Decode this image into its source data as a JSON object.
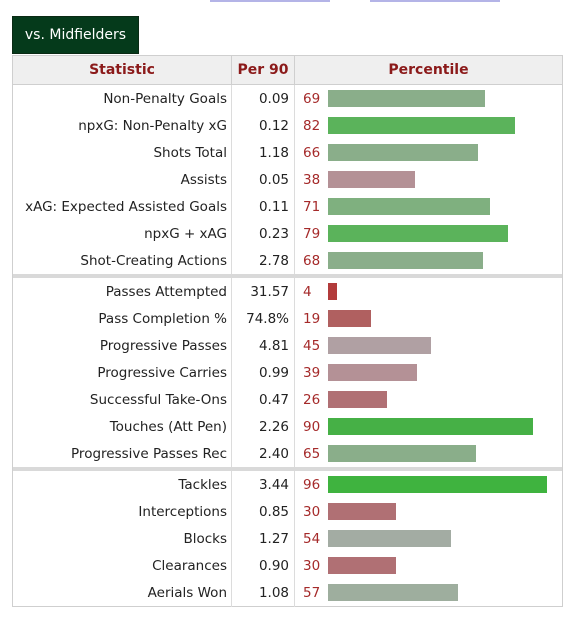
{
  "tab": {
    "label": "vs. Midfielders"
  },
  "table": {
    "headers": {
      "statistic": "Statistic",
      "per90": "Per 90",
      "percentile": "Percentile"
    },
    "groups": [
      [
        {
          "stat": "Non-Penalty Goals",
          "per90": "0.09",
          "percentile": 69,
          "color": "#8aae8a"
        },
        {
          "stat": "npxG: Non-Penalty xG",
          "per90": "0.12",
          "percentile": 82,
          "color": "#5bb35b"
        },
        {
          "stat": "Shots Total",
          "per90": "1.18",
          "percentile": 66,
          "color": "#8aae8a"
        },
        {
          "stat": "Assists",
          "per90": "0.05",
          "percentile": 38,
          "color": "#b49196"
        },
        {
          "stat": "xAG: Expected Assisted Goals",
          "per90": "0.11",
          "percentile": 71,
          "color": "#7fb07f"
        },
        {
          "stat": "npxG + xAG",
          "per90": "0.23",
          "percentile": 79,
          "color": "#5bb35b"
        },
        {
          "stat": "Shot-Creating Actions",
          "per90": "2.78",
          "percentile": 68,
          "color": "#8aae8a"
        }
      ],
      [
        {
          "stat": "Passes Attempted",
          "per90": "31.57",
          "percentile": 4,
          "color": "#b23b3b"
        },
        {
          "stat": "Pass Completion %",
          "per90": "74.8%",
          "percentile": 19,
          "color": "#b06060"
        },
        {
          "stat": "Progressive Passes",
          "per90": "4.81",
          "percentile": 45,
          "color": "#b0a0a3"
        },
        {
          "stat": "Progressive Carries",
          "per90": "0.99",
          "percentile": 39,
          "color": "#b49196"
        },
        {
          "stat": "Successful Take-Ons",
          "per90": "0.47",
          "percentile": 26,
          "color": "#b07074"
        },
        {
          "stat": "Touches (Att Pen)",
          "per90": "2.26",
          "percentile": 90,
          "color": "#46b046"
        },
        {
          "stat": "Progressive Passes Rec",
          "per90": "2.40",
          "percentile": 65,
          "color": "#8aae8a"
        }
      ],
      [
        {
          "stat": "Tackles",
          "per90": "3.44",
          "percentile": 96,
          "color": "#3fb33f"
        },
        {
          "stat": "Interceptions",
          "per90": "0.85",
          "percentile": 30,
          "color": "#b07074"
        },
        {
          "stat": "Blocks",
          "per90": "1.27",
          "percentile": 54,
          "color": "#a3aca3"
        },
        {
          "stat": "Clearances",
          "per90": "0.90",
          "percentile": 30,
          "color": "#b07074"
        },
        {
          "stat": "Aerials Won",
          "per90": "1.08",
          "percentile": 57,
          "color": "#9eae9e"
        }
      ]
    ]
  }
}
